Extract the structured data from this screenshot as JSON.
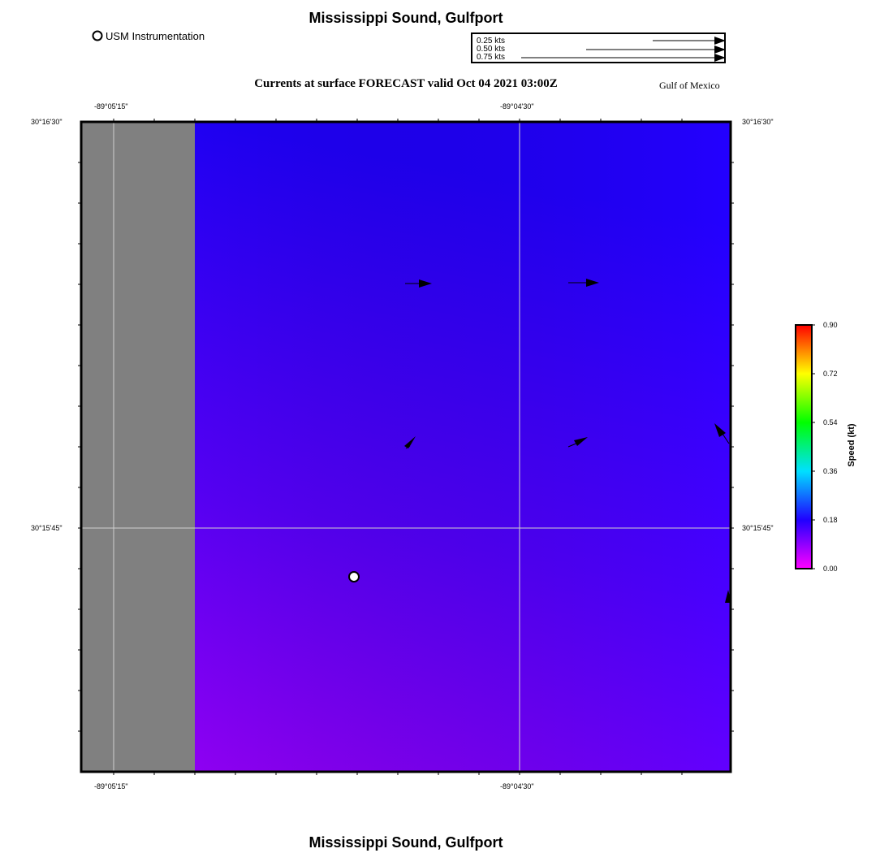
{
  "header": {
    "title": "Mississippi Sound, Gulfport",
    "subtitle": "Currents at surface FORECAST valid Oct 04 2021 03:00Z",
    "region": "Gulf of Mexico"
  },
  "footer": {
    "title": "Mississippi Sound, Gulfport"
  },
  "station_legend": {
    "label": "USM Instrumentation"
  },
  "vector_scale": {
    "entries": [
      {
        "label": "0.25 kts",
        "speed": 0.25
      },
      {
        "label": "0.50 kts",
        "speed": 0.5
      },
      {
        "label": "0.75 kts",
        "speed": 0.75
      }
    ]
  },
  "axes": {
    "lon_ticks": [
      "-89°05'15\"",
      "-89°04'30\""
    ],
    "lat_ticks": [
      "30°16'30\"",
      "30°15'45\""
    ]
  },
  "colorbar": {
    "title": "Speed (kt)",
    "ticks": [
      "0.90",
      "0.72",
      "0.54",
      "0.36",
      "0.18",
      "0.00"
    ]
  },
  "colors": {
    "land": "#808080",
    "water_top": "#2200ff",
    "water_bottom": "#9a00ff",
    "arrow": "#000000"
  }
}
